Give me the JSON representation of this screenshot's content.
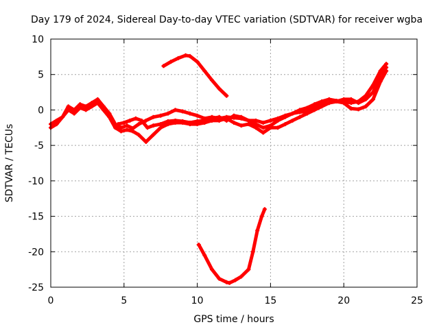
{
  "chart_data": {
    "type": "line",
    "title": "Day 179 of 2024, Sidereal Day-to-day VTEC variation (SDTVAR) for receiver wgba",
    "xlabel": "GPS time / hours",
    "ylabel": "SDTVAR / TECUs",
    "xlim": [
      0,
      25
    ],
    "ylim": [
      -25,
      10
    ],
    "xticks": [
      0,
      5,
      10,
      15,
      20,
      25
    ],
    "yticks": [
      10,
      5,
      0,
      -5,
      -10,
      -15,
      -20,
      -25
    ],
    "grid": true,
    "color": "#ff0000",
    "series": [
      {
        "name": "main-trace-a",
        "x": [
          0,
          0.4,
          0.8,
          1.2,
          1.6,
          2.0,
          2.4,
          2.8,
          3.2,
          3.6,
          4.0,
          4.4,
          4.8,
          5.2,
          5.6,
          6.0,
          6.5,
          7.0,
          7.5,
          8.0,
          8.5,
          9.0,
          9.5,
          10.0,
          10.5,
          11.0,
          11.5,
          12.0,
          12.5,
          13.0,
          13.5,
          14.0,
          14.5,
          15.0,
          15.5,
          16.0,
          16.5,
          17.0,
          17.5,
          18.0,
          18.5,
          19.0,
          19.5,
          20.0,
          20.5,
          21.0,
          21.5,
          22.0,
          22.5,
          22.9
        ],
        "y": [
          -2.0,
          -1.5,
          -1.0,
          0.5,
          0.0,
          0.8,
          0.5,
          1.0,
          1.5,
          0.5,
          -0.5,
          -2.0,
          -2.5,
          -2.2,
          -2.6,
          -2.0,
          -1.5,
          -1.0,
          -0.8,
          -0.5,
          0.0,
          -0.2,
          -0.5,
          -0.8,
          -1.2,
          -1.0,
          -1.2,
          -1.0,
          -1.1,
          -1.2,
          -1.5,
          -2.0,
          -2.5,
          -2.2,
          -1.5,
          -1.0,
          -0.5,
          0.0,
          0.3,
          0.8,
          1.2,
          1.5,
          1.3,
          1.2,
          1.0,
          1.2,
          2.0,
          3.5,
          5.5,
          6.5
        ]
      },
      {
        "name": "main-trace-b",
        "x": [
          0,
          0.4,
          0.8,
          1.2,
          1.6,
          2.0,
          2.4,
          2.8,
          3.2,
          3.6,
          4.0,
          4.4,
          4.8,
          5.2,
          5.6,
          6.0,
          6.5,
          7.0,
          7.5,
          8.0,
          8.5,
          9.0,
          9.5,
          10.0,
          10.5,
          11.0,
          11.5,
          12.0,
          12.5,
          13.0,
          13.5,
          14.0,
          14.5,
          15.0,
          15.5,
          16.0,
          16.5,
          17.0,
          17.5,
          18.0,
          18.5,
          19.0,
          19.5,
          20.0,
          20.5,
          21.0,
          21.5,
          22.0,
          22.5,
          22.9
        ],
        "y": [
          -2.5,
          -2.0,
          -1.0,
          0.0,
          -0.5,
          0.3,
          0.0,
          0.5,
          1.0,
          0.0,
          -1.0,
          -2.5,
          -3.0,
          -2.8,
          -3.0,
          -3.5,
          -4.5,
          -3.5,
          -2.5,
          -2.0,
          -1.8,
          -1.8,
          -2.0,
          -2.0,
          -1.8,
          -1.5,
          -1.5,
          -1.2,
          -1.8,
          -2.2,
          -2.0,
          -2.5,
          -3.2,
          -2.5,
          -2.5,
          -2.0,
          -1.5,
          -1.0,
          -0.5,
          0.0,
          0.5,
          1.0,
          1.2,
          1.0,
          0.2,
          0.1,
          0.5,
          1.5,
          4.0,
          5.5
        ]
      },
      {
        "name": "main-trace-c",
        "x": [
          4.6,
          5.0,
          5.4,
          5.8,
          6.2,
          6.6,
          7.0,
          7.5,
          8.0,
          8.5,
          9.0,
          9.5,
          10.0,
          10.5,
          11.0,
          11.5,
          12.0,
          12.5,
          13.0,
          13.5,
          14.0,
          14.5,
          15.0,
          15.5,
          16.0,
          16.5,
          17.0,
          17.5,
          18.0,
          18.5,
          19.0,
          19.5,
          20.0,
          20.5,
          21.0,
          21.5,
          22.0,
          22.5,
          22.9
        ],
        "y": [
          -2.0,
          -1.8,
          -1.5,
          -1.2,
          -1.5,
          -2.5,
          -2.2,
          -2.0,
          -1.6,
          -1.5,
          -1.6,
          -1.8,
          -1.6,
          -1.5,
          -1.2,
          -1.0,
          -1.5,
          -0.8,
          -1.0,
          -1.5,
          -1.5,
          -1.8,
          -1.5,
          -1.2,
          -0.8,
          -0.5,
          -0.3,
          -0.2,
          0.5,
          0.8,
          1.0,
          1.2,
          1.5,
          1.5,
          1.0,
          1.5,
          2.5,
          5.0,
          6.0
        ]
      },
      {
        "name": "upper-arc",
        "x": [
          7.7,
          8.2,
          8.7,
          9.2,
          9.5,
          10.0,
          10.5,
          11.0,
          11.5,
          12.0
        ],
        "y": [
          6.2,
          6.8,
          7.3,
          7.7,
          7.6,
          6.8,
          5.5,
          4.2,
          3.0,
          2.0
        ]
      },
      {
        "name": "lower-arc",
        "x": [
          10.1,
          10.5,
          11.0,
          11.5,
          12.0,
          12.2,
          12.6,
          13.0,
          13.5,
          13.8,
          14.1,
          14.4,
          14.6
        ],
        "y": [
          -19.0,
          -20.5,
          -22.5,
          -23.8,
          -24.3,
          -24.4,
          -24.0,
          -23.5,
          -22.5,
          -20.0,
          -17.0,
          -15.0,
          -14.0
        ]
      }
    ]
  }
}
